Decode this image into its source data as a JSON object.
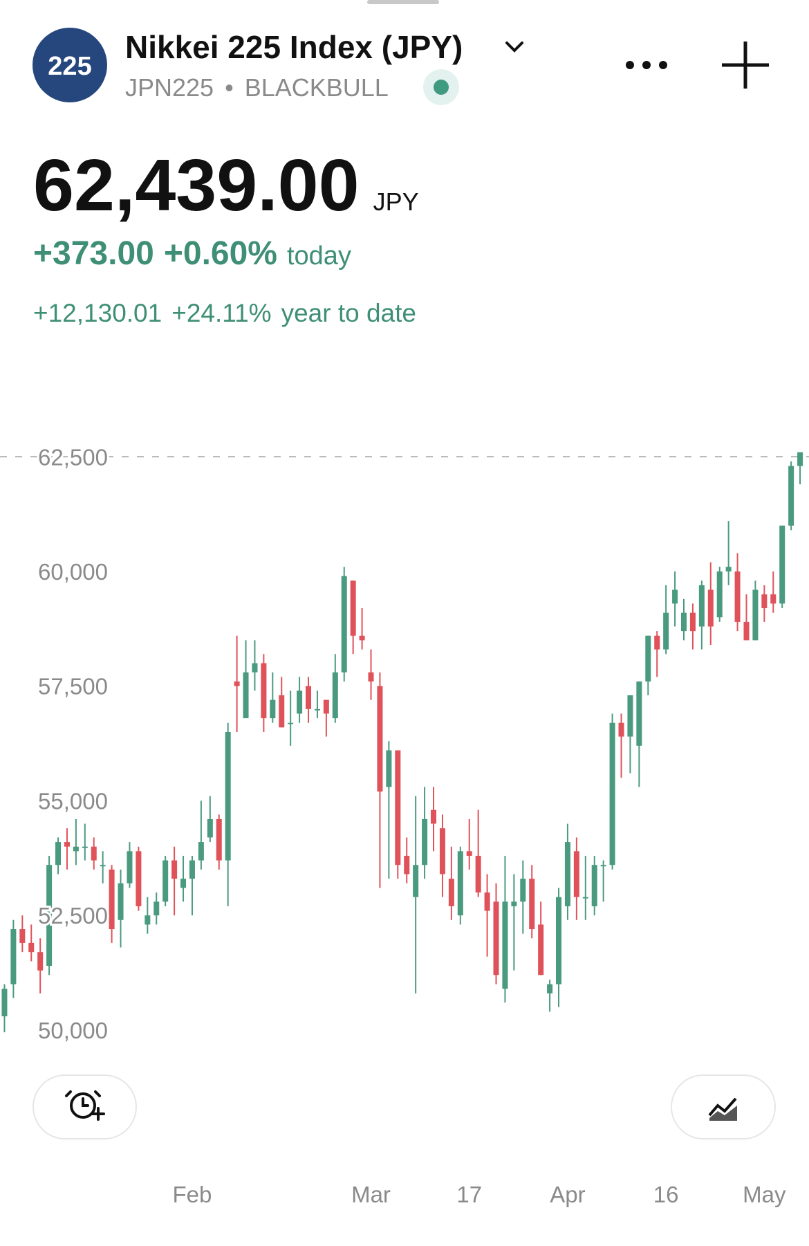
{
  "header": {
    "logo": "225",
    "title": "Nikkei 225 Index (JPY)",
    "symbol": "JPN225",
    "exchange": "BLACKBULL"
  },
  "quote": {
    "price": "62,439.00",
    "currency": "JPY",
    "change": "+373.00",
    "change_pct": "+0.60%",
    "change_period": "today",
    "ytd_change": "+12,130.01",
    "ytd_pct": "+24.11%",
    "ytd_period": "year to date"
  },
  "chart_data": {
    "type": "candlestick",
    "up_color": "#4a9a80",
    "down_color": "#e0525a",
    "ylim": [
      49500,
      63500
    ],
    "yticks": [
      {
        "value": 50000,
        "label": "50,000"
      },
      {
        "value": 52500,
        "label": "52,500"
      },
      {
        "value": 55000,
        "label": "55,000"
      },
      {
        "value": 57500,
        "label": "57,500"
      },
      {
        "value": 60000,
        "label": "60,000"
      },
      {
        "value": 62500,
        "label": "62,500"
      }
    ],
    "dashed_line": 62500,
    "xlim": [
      -0.5,
      90
    ],
    "xticks": [
      {
        "value": 21,
        "label": "Feb"
      },
      {
        "value": 41,
        "label": "Mar"
      },
      {
        "value": 52,
        "label": "17"
      },
      {
        "value": 63,
        "label": "Apr"
      },
      {
        "value": 74,
        "label": "16"
      },
      {
        "value": 85,
        "label": "May"
      }
    ],
    "open": [
      50300,
      51000,
      52200,
      51900,
      51700,
      51400,
      53600,
      54100,
      53900,
      54000,
      54000,
      53600,
      53500,
      52400,
      53200,
      53900,
      52300,
      52500,
      52800,
      53700,
      53100,
      53300,
      53700,
      54200,
      54600,
      53700,
      57600,
      56800,
      57800,
      58000,
      56800,
      57300,
      56700,
      56900,
      57500,
      57000,
      57200,
      56800,
      57800,
      59800,
      58600,
      57800,
      57500,
      55300,
      56100,
      53800,
      52900,
      53600,
      54800,
      54400,
      53300,
      52500,
      53900,
      53800,
      53000,
      52800,
      50900,
      52700,
      52800,
      53300,
      52300,
      50800,
      51000,
      52700,
      53900,
      52900,
      52700,
      53600,
      53600,
      56700,
      56400,
      56200,
      57600,
      58600,
      58300,
      59300,
      58700,
      59100,
      58800,
      59600,
      59000,
      60000,
      60000,
      58900,
      58500,
      59500,
      59500,
      59300,
      61000,
      62300
    ],
    "high": [
      51000,
      52400,
      52500,
      52300,
      52000,
      53800,
      54200,
      54400,
      54600,
      54500,
      54200,
      53900,
      53600,
      53500,
      54100,
      54000,
      52900,
      53000,
      53800,
      54000,
      53800,
      53800,
      55000,
      55100,
      54700,
      56700,
      58600,
      58500,
      58500,
      58200,
      57800,
      57700,
      57400,
      57700,
      57700,
      57400,
      57200,
      58200,
      60100,
      59800,
      59200,
      58300,
      57800,
      56300,
      56000,
      54200,
      55100,
      55300,
      55300,
      54700,
      54000,
      54000,
      54600,
      54800,
      53400,
      53200,
      53800,
      53400,
      53700,
      53600,
      52800,
      51100,
      53100,
      54500,
      54200,
      53800,
      53800,
      53700,
      56900,
      56900,
      57300,
      57600,
      58600,
      58700,
      59700,
      60000,
      59400,
      59300,
      59800,
      60200,
      60100,
      61100,
      60400,
      59500,
      59800,
      59700,
      60000,
      61000,
      62400,
      62600
    ],
    "low": [
      49950,
      50700,
      51700,
      51500,
      50800,
      51200,
      53400,
      53500,
      53600,
      53700,
      53500,
      53200,
      51900,
      51800,
      53100,
      52600,
      52100,
      52300,
      52700,
      52500,
      52800,
      52500,
      53500,
      54100,
      53500,
      52700,
      56500,
      56900,
      57400,
      56500,
      56700,
      56600,
      56200,
      56700,
      56700,
      56800,
      56400,
      56700,
      57600,
      58200,
      58300,
      57200,
      53100,
      53300,
      53300,
      53200,
      50800,
      53300,
      53900,
      52900,
      52400,
      52300,
      53500,
      52900,
      51600,
      51000,
      50600,
      51300,
      52100,
      52000,
      51200,
      50400,
      50500,
      52400,
      52400,
      52400,
      52500,
      52800,
      53500,
      55500,
      55600,
      55300,
      57300,
      57700,
      58200,
      58800,
      58500,
      58300,
      58300,
      58400,
      58900,
      59700,
      58700,
      58500,
      58500,
      58900,
      59100,
      59200,
      60900,
      61900
    ],
    "close": [
      50900,
      52200,
      51900,
      51700,
      51300,
      53600,
      54100,
      54000,
      54000,
      54000,
      53700,
      53600,
      52200,
      53200,
      53900,
      52700,
      52500,
      52800,
      53700,
      53300,
      53300,
      53700,
      54100,
      54600,
      53700,
      56500,
      57500,
      57800,
      58000,
      56800,
      57200,
      56600,
      56700,
      57400,
      57000,
      57000,
      56900,
      57800,
      59900,
      58600,
      58500,
      57600,
      55200,
      56100,
      53600,
      53400,
      53600,
      54600,
      54500,
      53400,
      52700,
      53900,
      53800,
      53000,
      52600,
      51200,
      52800,
      52800,
      53300,
      52200,
      51200,
      51000,
      52900,
      54100,
      52900,
      52900,
      53600,
      53600,
      56700,
      56400,
      57300,
      57600,
      58600,
      58300,
      59100,
      59600,
      59100,
      58700,
      59700,
      58800,
      60000,
      60100,
      58900,
      58500,
      59600,
      59200,
      59300,
      61000,
      62300,
      62600
    ]
  }
}
